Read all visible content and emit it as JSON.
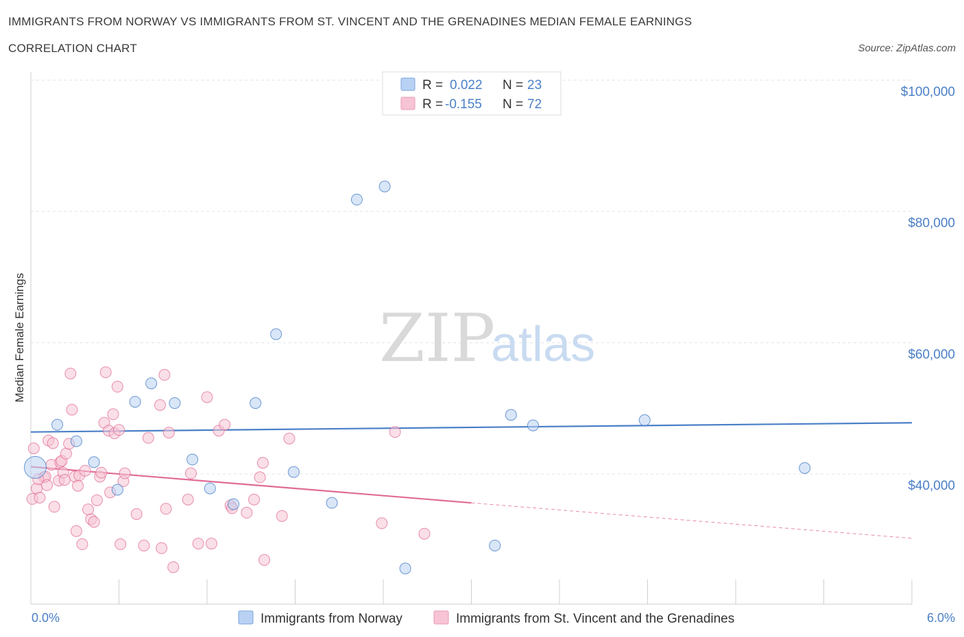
{
  "header": {
    "title": "IMMIGRANTS FROM NORWAY VS IMMIGRANTS FROM ST. VINCENT AND THE GRENADINES MEDIAN FEMALE EARNINGS",
    "subtitle": "CORRELATION CHART",
    "source": "Source: ZipAtlas.com"
  },
  "watermark": {
    "zip": "ZIP",
    "atlas": "atlas"
  },
  "colors": {
    "norway": "#4a7fc7",
    "norway_fill": "#b9d1f3",
    "stvincent": "#e06b96",
    "stvincent_fill": "#f6c4d4",
    "grid": "#e3e3e3",
    "axis_text": "#4a7fc7"
  },
  "legend": {
    "norway": {
      "r_label": "R =",
      "r_value": "0.022",
      "n_label": "N =",
      "n_value": "23"
    },
    "stvincent": {
      "r_label": "R =",
      "r_value": "-0.155",
      "n_label": "N =",
      "n_value": "72"
    }
  },
  "chart_data": {
    "type": "scatter",
    "ylabel": "Median Female Earnings",
    "xlabel": "",
    "xlim": [
      0,
      6
    ],
    "ylim": [
      20000,
      100000
    ],
    "x_tick_labels": [
      {
        "value": 0,
        "label": "0.0%"
      },
      {
        "value": 6,
        "label": "6.0%"
      }
    ],
    "y_tick_labels": [
      {
        "value": 100000,
        "label": "$100,000"
      },
      {
        "value": 80000,
        "label": "$80,000"
      },
      {
        "value": 60000,
        "label": "$60,000"
      },
      {
        "value": 40000,
        "label": "$40,000"
      }
    ],
    "series": [
      {
        "name": "Immigrants from Norway",
        "color": "#4a7fc7",
        "points": [
          [
            0.03,
            41000
          ],
          [
            0.18,
            47500
          ],
          [
            0.31,
            45000
          ],
          [
            0.43,
            41800
          ],
          [
            0.59,
            37600
          ],
          [
            0.71,
            51000
          ],
          [
            0.82,
            53800
          ],
          [
            0.98,
            50800
          ],
          [
            1.1,
            42200
          ],
          [
            1.22,
            37800
          ],
          [
            1.38,
            35400
          ],
          [
            1.53,
            50800
          ],
          [
            1.67,
            61300
          ],
          [
            1.79,
            40300
          ],
          [
            2.05,
            35600
          ],
          [
            2.22,
            81800
          ],
          [
            2.41,
            83800
          ],
          [
            2.55,
            25600
          ],
          [
            3.16,
            29100
          ],
          [
            3.27,
            49000
          ],
          [
            3.42,
            47400
          ],
          [
            4.18,
            48200
          ],
          [
            5.27,
            40900
          ]
        ],
        "trend": {
          "x0": 0.0,
          "y0": 46400,
          "x1": 6.0,
          "y1": 47800
        }
      },
      {
        "name": "Immigrants from St. Vincent and the Grenadines",
        "color": "#e06b96",
        "points": [
          [
            0.01,
            36200
          ],
          [
            0.02,
            43900
          ],
          [
            0.04,
            37800
          ],
          [
            0.06,
            36400
          ],
          [
            0.09,
            39500
          ],
          [
            0.1,
            39600
          ],
          [
            0.11,
            38300
          ],
          [
            0.12,
            45100
          ],
          [
            0.14,
            41400
          ],
          [
            0.15,
            44700
          ],
          [
            0.16,
            35000
          ],
          [
            0.19,
            39000
          ],
          [
            0.2,
            41800
          ],
          [
            0.21,
            42000
          ],
          [
            0.22,
            40200
          ],
          [
            0.23,
            39100
          ],
          [
            0.24,
            43100
          ],
          [
            0.26,
            44600
          ],
          [
            0.27,
            55300
          ],
          [
            0.28,
            49800
          ],
          [
            0.3,
            39600
          ],
          [
            0.31,
            31300
          ],
          [
            0.32,
            38200
          ],
          [
            0.33,
            39800
          ],
          [
            0.35,
            29300
          ],
          [
            0.37,
            40500
          ],
          [
            0.39,
            34600
          ],
          [
            0.41,
            33100
          ],
          [
            0.43,
            32700
          ],
          [
            0.45,
            36000
          ],
          [
            0.47,
            39600
          ],
          [
            0.48,
            40200
          ],
          [
            0.5,
            47800
          ],
          [
            0.51,
            55500
          ],
          [
            0.53,
            46600
          ],
          [
            0.54,
            37200
          ],
          [
            0.56,
            49100
          ],
          [
            0.57,
            46200
          ],
          [
            0.59,
            53300
          ],
          [
            0.6,
            46700
          ],
          [
            0.61,
            29300
          ],
          [
            0.63,
            38900
          ],
          [
            0.64,
            40100
          ],
          [
            0.72,
            33900
          ],
          [
            0.77,
            29100
          ],
          [
            0.8,
            45500
          ],
          [
            0.88,
            50500
          ],
          [
            0.89,
            28700
          ],
          [
            0.91,
            55100
          ],
          [
            0.92,
            34700
          ],
          [
            0.94,
            46300
          ],
          [
            0.97,
            25800
          ],
          [
            1.07,
            36100
          ],
          [
            1.09,
            40100
          ],
          [
            1.14,
            29400
          ],
          [
            1.2,
            51700
          ],
          [
            1.23,
            29400
          ],
          [
            1.28,
            46600
          ],
          [
            1.32,
            47500
          ],
          [
            1.36,
            35200
          ],
          [
            1.37,
            34800
          ],
          [
            1.47,
            34100
          ],
          [
            1.52,
            36100
          ],
          [
            1.56,
            39500
          ],
          [
            1.58,
            41700
          ],
          [
            1.59,
            26900
          ],
          [
            1.71,
            33600
          ],
          [
            1.76,
            45400
          ],
          [
            2.39,
            32500
          ],
          [
            2.48,
            46400
          ],
          [
            2.68,
            30900
          ],
          [
            0.05,
            39200
          ]
        ],
        "trend": {
          "x0": 0.0,
          "y0": 41100,
          "x1": 3.0,
          "y1": 35600
        },
        "trend_dashed": {
          "x0": 3.0,
          "y0": 35600,
          "x1": 6.0,
          "y1": 30200
        }
      }
    ],
    "legend_position": "top-center",
    "grid": true
  },
  "bottom_legend": {
    "norway": "Immigrants from Norway",
    "stvincent": "Immigrants from St. Vincent and the Grenadines"
  }
}
